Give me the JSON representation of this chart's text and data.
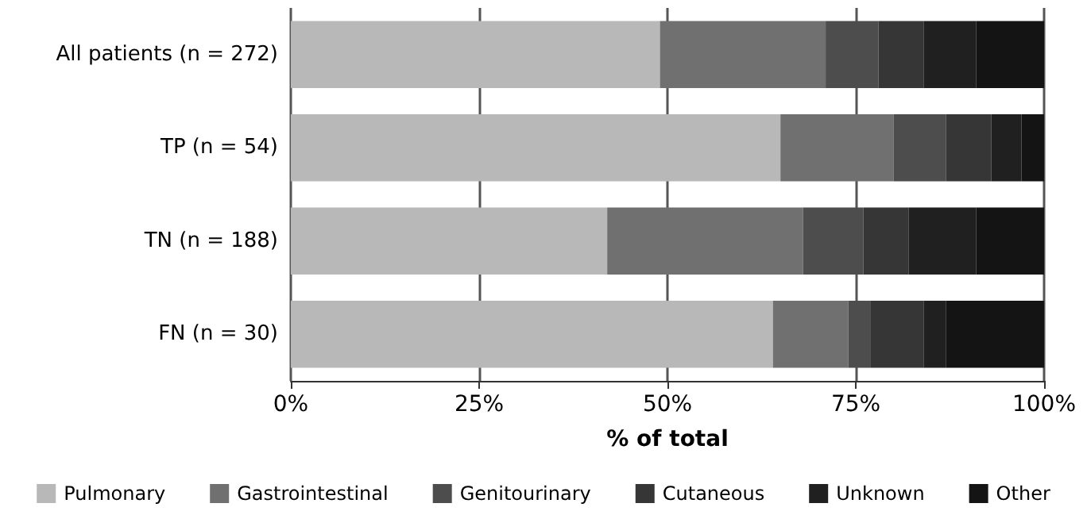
{
  "chart_data": {
    "type": "bar",
    "orientation": "horizontal",
    "stacked": true,
    "xlabel": "% of total",
    "categories": [
      "All patients (n = 272)",
      "TP (n = 54)",
      "TN (n = 188)",
      "FN (n = 30)"
    ],
    "series": [
      {
        "name": "Pulmonary",
        "color": "#b8b8b8",
        "values": [
          49,
          65,
          42,
          64
        ]
      },
      {
        "name": "Gastrointestinal",
        "color": "#707070",
        "values": [
          22,
          15,
          26,
          10
        ]
      },
      {
        "name": "Genitourinary",
        "color": "#4d4d4d",
        "values": [
          7,
          7,
          8,
          3
        ]
      },
      {
        "name": "Cutaneous",
        "color": "#363636",
        "values": [
          6,
          6,
          6,
          7
        ]
      },
      {
        "name": "Unknown",
        "color": "#202020",
        "values": [
          7,
          4,
          9,
          3
        ]
      },
      {
        "name": "Other",
        "color": "#141414",
        "values": [
          9,
          3,
          9,
          13
        ]
      }
    ],
    "xlim": [
      0,
      100
    ],
    "xticks": [
      {
        "value": 0,
        "label": "0%"
      },
      {
        "value": 25,
        "label": "25%"
      },
      {
        "value": 50,
        "label": "50%"
      },
      {
        "value": 75,
        "label": "75%"
      },
      {
        "value": 100,
        "label": "100%"
      }
    ],
    "grid": "x",
    "legend": "bottom"
  }
}
